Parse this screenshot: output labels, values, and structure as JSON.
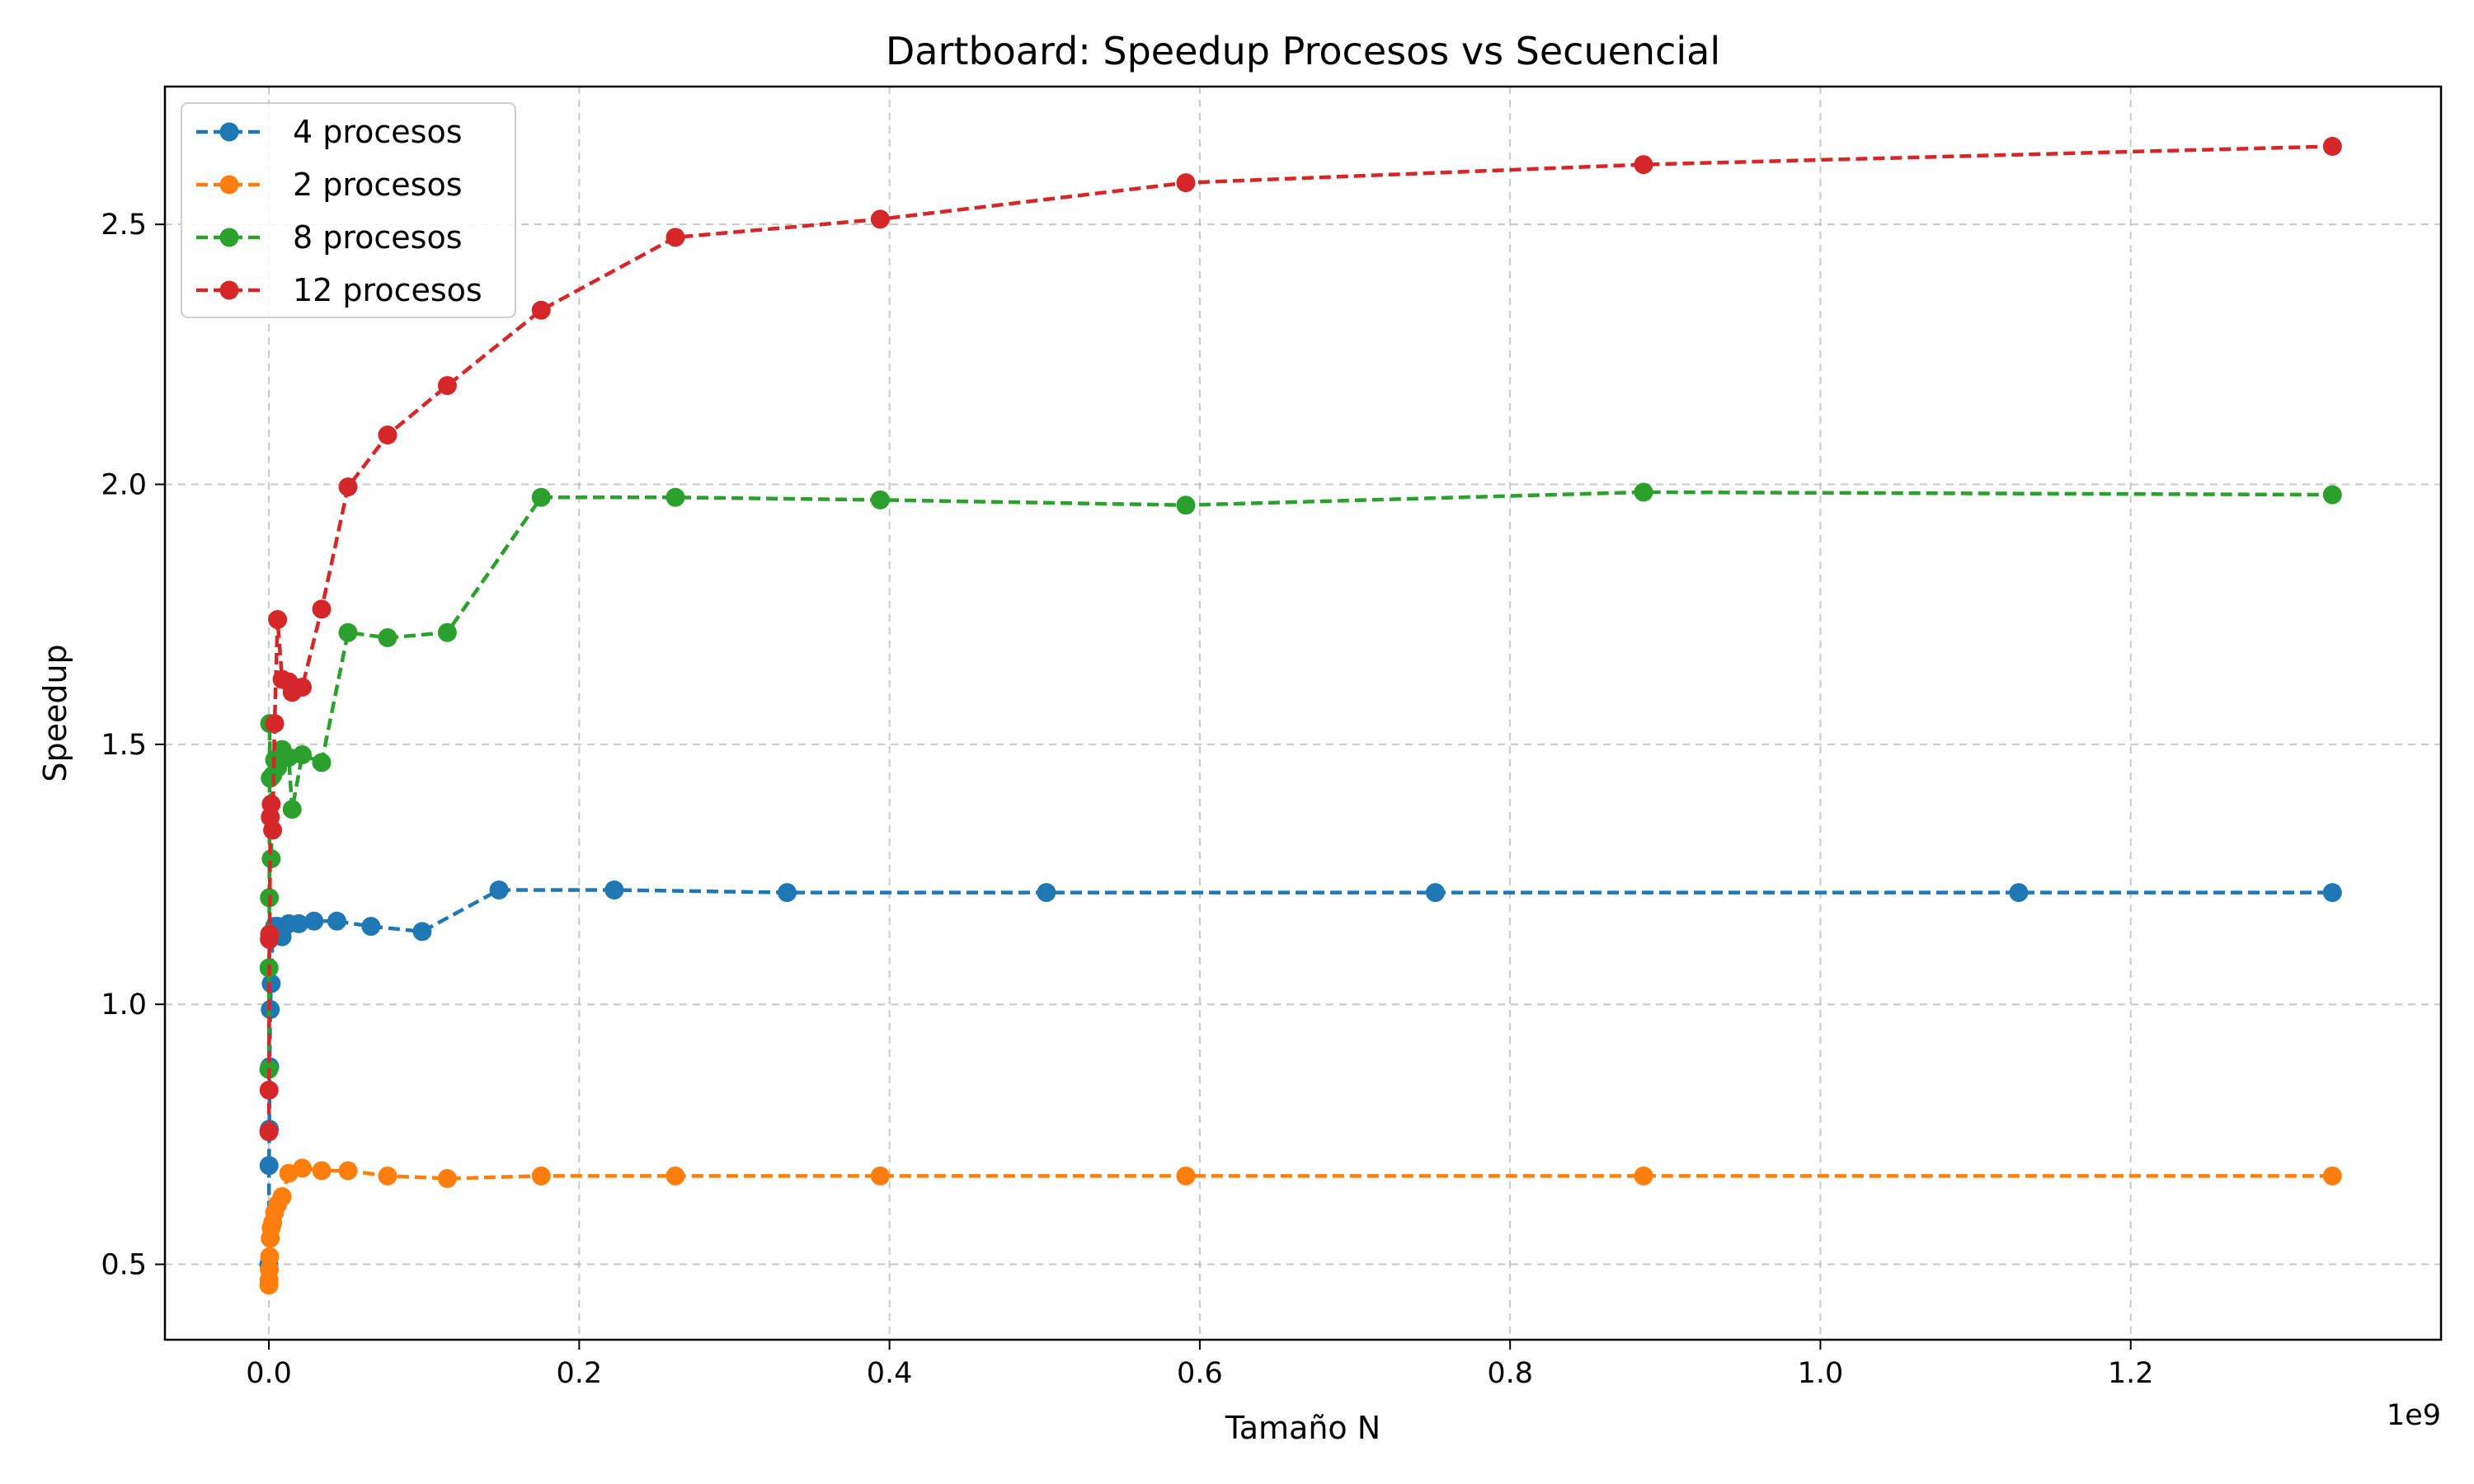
{
  "chart_data": {
    "type": "line",
    "title": "Dartboard: Speedup Procesos vs Secuencial",
    "xlabel": "Tamaño N",
    "ylabel": "Speedup",
    "x_offset_label": "1e9",
    "xlim": [
      -0.067,
      1.4
    ],
    "ylim": [
      0.355,
      2.765
    ],
    "x_ticks": [
      0.0,
      0.2,
      0.4,
      0.6,
      0.8,
      1.0,
      1.2
    ],
    "x_tick_labels": [
      "0.0",
      "0.2",
      "0.4",
      "0.6",
      "0.8",
      "1.0",
      "1.2"
    ],
    "y_ticks": [
      0.5,
      1.0,
      1.5,
      2.0,
      2.5
    ],
    "y_tick_labels": [
      "0.5",
      "1.0",
      "1.5",
      "2.0",
      "2.5"
    ],
    "grid": true,
    "legend_position": "top-left",
    "series": [
      {
        "name": "4 procesos",
        "color": "#1f77b4",
        "x": [
          0.0,
          0.0001,
          0.0003,
          0.0005,
          0.0009,
          0.0015,
          0.0024,
          0.0037,
          0.0056,
          0.0085,
          0.0128,
          0.0193,
          0.0291,
          0.0438,
          0.0658,
          0.0988,
          0.1483,
          0.2226,
          0.334,
          0.5011,
          0.7518,
          1.1278,
          1.33
        ],
        "y": [
          0.5,
          0.69,
          0.76,
          0.88,
          0.99,
          1.04,
          1.13,
          1.15,
          1.15,
          1.13,
          1.155,
          1.155,
          1.16,
          1.16,
          1.15,
          1.14,
          1.22,
          1.22,
          1.215,
          1.215,
          1.215,
          1.215,
          1.215
        ]
      },
      {
        "name": "2 procesos",
        "color": "#ff7f0e",
        "x": [
          0.0,
          0.0001,
          0.0003,
          0.0005,
          0.0009,
          0.0015,
          0.0024,
          0.0037,
          0.0056,
          0.0085,
          0.0128,
          0.0215,
          0.034,
          0.051,
          0.0765,
          0.115,
          0.1755,
          0.262,
          0.394,
          0.591,
          0.886,
          1.33
        ],
        "y": [
          0.46,
          0.47,
          0.49,
          0.515,
          0.55,
          0.57,
          0.58,
          0.6,
          0.615,
          0.63,
          0.675,
          0.685,
          0.68,
          0.68,
          0.67,
          0.665,
          0.67,
          0.67,
          0.67,
          0.67,
          0.67,
          0.67
        ]
      },
      {
        "name": "8 procesos",
        "color": "#2ca02c",
        "x": [
          0.0,
          0.0001,
          0.0003,
          0.0005,
          0.0009,
          0.0015,
          0.0024,
          0.0037,
          0.0056,
          0.0085,
          0.0128,
          0.015,
          0.0215,
          0.034,
          0.051,
          0.0765,
          0.115,
          0.1755,
          0.262,
          0.394,
          0.591,
          0.886,
          1.33
        ],
        "y": [
          0.875,
          1.07,
          1.205,
          1.54,
          1.435,
          1.28,
          1.44,
          1.47,
          1.455,
          1.49,
          1.475,
          1.375,
          1.48,
          1.465,
          1.715,
          1.705,
          1.715,
          1.975,
          1.975,
          1.97,
          1.96,
          1.985,
          1.98
        ]
      },
      {
        "name": "12 procesos",
        "color": "#d62728",
        "x": [
          0.0,
          0.0001,
          0.0003,
          0.0005,
          0.0009,
          0.0015,
          0.0024,
          0.0037,
          0.0056,
          0.0085,
          0.0128,
          0.015,
          0.0215,
          0.034,
          0.051,
          0.0765,
          0.115,
          0.1755,
          0.262,
          0.394,
          0.591,
          0.886,
          1.33
        ],
        "y": [
          0.755,
          0.835,
          1.125,
          1.135,
          1.36,
          1.385,
          1.335,
          1.54,
          1.74,
          1.625,
          1.62,
          1.6,
          1.61,
          1.76,
          1.995,
          2.095,
          2.19,
          2.335,
          2.475,
          2.51,
          2.58,
          2.615,
          2.65
        ]
      }
    ]
  }
}
